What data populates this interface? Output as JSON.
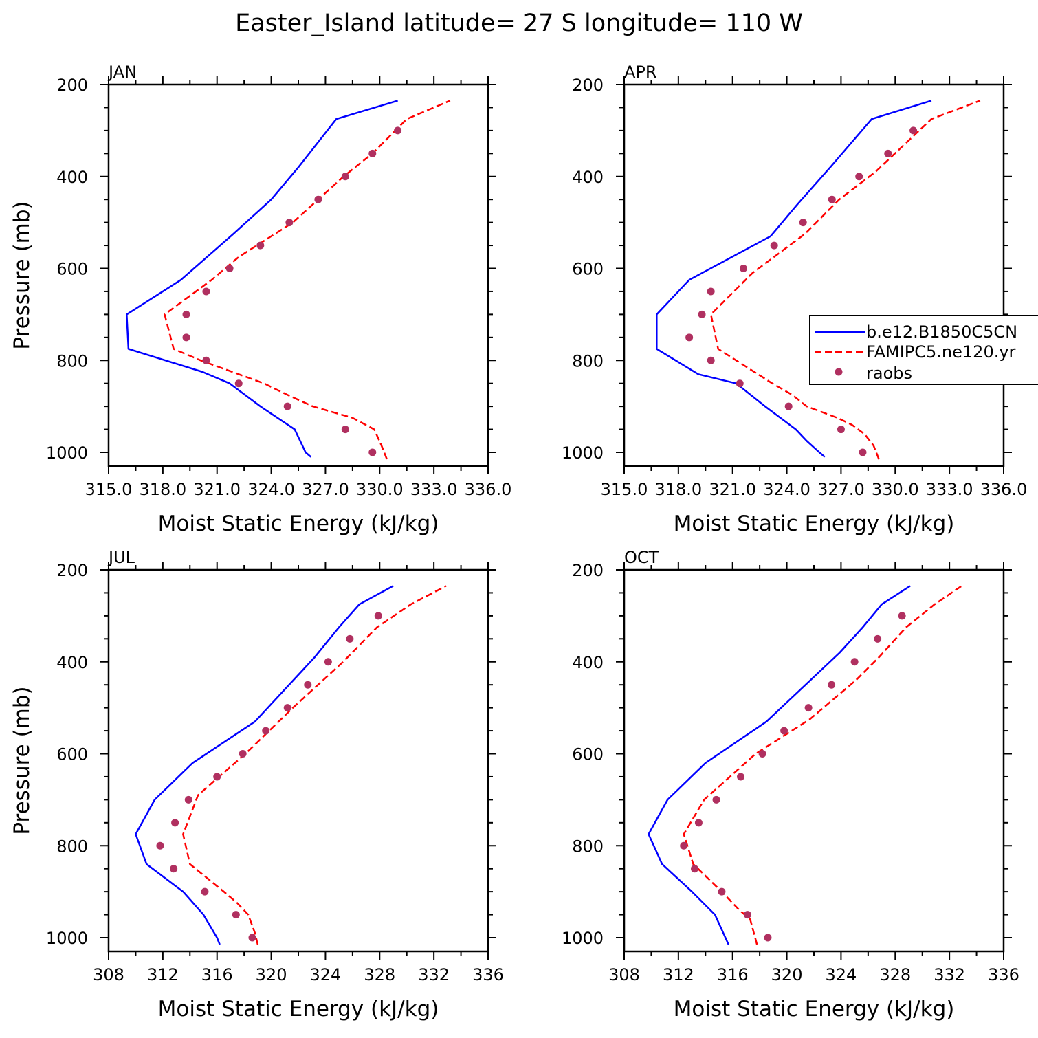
{
  "title": "Easter_Island  latitude= 27 S longitude= 110 W",
  "legend": {
    "entries": [
      {
        "label": "b.e12.B1850C5CN",
        "color": "#0000ff",
        "style": "solid"
      },
      {
        "label": "FAMIPC5.ne120.yr",
        "color": "#ff0000",
        "style": "dashed"
      },
      {
        "label": "raobs",
        "color": "#b03060",
        "style": "marker"
      }
    ]
  },
  "chart_data": [
    {
      "type": "line",
      "panel": "JAN",
      "title": "JAN",
      "xlabel": "Moist Static Energy (kJ/kg)",
      "ylabel": "Pressure (mb)",
      "xlim": [
        315.0,
        336.0
      ],
      "ylim": [
        1000,
        200
      ],
      "x_ticks": [
        "315.0",
        "318.0",
        "321.0",
        "324.0",
        "327.0",
        "330.0",
        "333.0",
        "336.0"
      ],
      "y_ticks": [
        "200",
        "400",
        "600",
        "800",
        "1000"
      ],
      "series": [
        {
          "name": "b.e12.B1850C5CN",
          "pressure": [
            1010,
            1000,
            950,
            900,
            850,
            825,
            775,
            700,
            625,
            525,
            450,
            380,
            275,
            235
          ],
          "mse": [
            326.2,
            325.9,
            325.3,
            323.4,
            321.7,
            320.2,
            316.1,
            316.0,
            319.0,
            321.9,
            324.0,
            325.5,
            327.6,
            331.0
          ]
        },
        {
          "name": "FAMIPC5.ne120.yr",
          "pressure": [
            1015,
            985,
            950,
            925,
            900,
            875,
            850,
            800,
            775,
            700,
            625,
            575,
            500,
            450,
            400,
            350,
            275,
            235
          ],
          "mse": [
            330.4,
            330.1,
            329.7,
            328.5,
            326.3,
            324.9,
            323.6,
            320.1,
            318.6,
            318.1,
            320.7,
            322.2,
            325.2,
            326.6,
            328.0,
            329.6,
            331.5,
            333.9
          ]
        },
        {
          "name": "raobs",
          "pressure": [
            1000,
            950,
            900,
            850,
            800,
            750,
            700,
            650,
            600,
            550,
            500,
            450,
            400,
            350,
            300
          ],
          "mse": [
            329.6,
            328.1,
            324.9,
            322.2,
            320.4,
            319.3,
            319.3,
            320.4,
            321.7,
            323.4,
            325.0,
            326.6,
            328.1,
            329.6,
            331.0
          ]
        }
      ]
    },
    {
      "type": "line",
      "panel": "APR",
      "title": "APR",
      "xlabel": "Moist Static Energy (kJ/kg)",
      "ylabel": "",
      "xlim": [
        315.0,
        336.0
      ],
      "ylim": [
        1000,
        200
      ],
      "x_ticks": [
        "315.0",
        "318.0",
        "321.0",
        "324.0",
        "327.0",
        "330.0",
        "333.0",
        "336.0"
      ],
      "y_ticks": [
        "200",
        "400",
        "600",
        "800",
        "1000"
      ],
      "series": [
        {
          "name": "b.e12.B1850C5CN",
          "pressure": [
            1010,
            1000,
            975,
            950,
            900,
            850,
            830,
            775,
            700,
            625,
            530,
            460,
            380,
            275,
            235
          ],
          "mse": [
            326.1,
            325.8,
            325.1,
            324.5,
            322.8,
            321.2,
            319.1,
            316.8,
            316.8,
            318.6,
            323.1,
            324.6,
            326.4,
            328.7,
            332.0
          ]
        },
        {
          "name": "FAMIPC5.ne120.yr",
          "pressure": [
            1015,
            985,
            960,
            940,
            925,
            900,
            875,
            850,
            775,
            700,
            610,
            525,
            450,
            390,
            275,
            235
          ],
          "mse": [
            329.1,
            328.8,
            328.3,
            327.6,
            326.8,
            325.1,
            324.3,
            323.2,
            320.2,
            319.8,
            322.1,
            325.0,
            326.9,
            328.9,
            332.0,
            334.7
          ]
        },
        {
          "name": "raobs",
          "pressure": [
            1000,
            950,
            900,
            850,
            800,
            750,
            700,
            650,
            600,
            550,
            500,
            450,
            400,
            350,
            300
          ],
          "mse": [
            328.2,
            327.0,
            324.1,
            321.4,
            319.8,
            318.6,
            319.3,
            319.8,
            321.6,
            323.3,
            324.9,
            326.5,
            328.0,
            329.6,
            331.0
          ]
        }
      ]
    },
    {
      "type": "line",
      "panel": "JUL",
      "title": "JUL",
      "xlabel": "Moist Static Energy (kJ/kg)",
      "ylabel": "Pressure (mb)",
      "xlim": [
        308,
        336
      ],
      "ylim": [
        1000,
        200
      ],
      "x_ticks": [
        "308",
        "312",
        "316",
        "320",
        "324",
        "328",
        "332",
        "336"
      ],
      "y_ticks": [
        "200",
        "400",
        "600",
        "800",
        "1000"
      ],
      "series": [
        {
          "name": "b.e12.B1850C5CN",
          "pressure": [
            1015,
            1000,
            950,
            900,
            840,
            775,
            700,
            620,
            530,
            460,
            390,
            325,
            275,
            235
          ],
          "mse": [
            316.2,
            316.0,
            315.0,
            313.5,
            310.8,
            310.0,
            311.4,
            314.2,
            318.8,
            321.0,
            323.2,
            325.0,
            326.5,
            329.0
          ]
        },
        {
          "name": "FAMIPC5.ne120.yr",
          "pressure": [
            1015,
            990,
            950,
            925,
            900,
            840,
            775,
            690,
            600,
            500,
            400,
            325,
            275,
            235
          ],
          "mse": [
            319.0,
            318.8,
            318.3,
            317.5,
            316.5,
            314.0,
            313.5,
            314.6,
            318.1,
            321.6,
            325.3,
            327.8,
            330.3,
            332.9
          ]
        },
        {
          "name": "raobs",
          "pressure": [
            1000,
            950,
            900,
            850,
            800,
            750,
            700,
            650,
            600,
            550,
            500,
            450,
            400,
            350,
            300
          ],
          "mse": [
            318.6,
            317.4,
            315.1,
            312.8,
            311.8,
            312.9,
            313.9,
            316.0,
            317.9,
            319.6,
            321.2,
            322.7,
            324.2,
            325.8,
            327.9
          ]
        }
      ]
    },
    {
      "type": "line",
      "panel": "OCT",
      "title": "OCT",
      "xlabel": "Moist Static Energy (kJ/kg)",
      "ylabel": "",
      "xlim": [
        308,
        336
      ],
      "ylim": [
        1000,
        200
      ],
      "x_ticks": [
        "308",
        "312",
        "316",
        "320",
        "324",
        "328",
        "332",
        "336"
      ],
      "y_ticks": [
        "200",
        "400",
        "600",
        "800",
        "1000"
      ],
      "series": [
        {
          "name": "b.e12.B1850C5CN",
          "pressure": [
            1015,
            950,
            900,
            840,
            775,
            700,
            620,
            530,
            380,
            325,
            275,
            235
          ],
          "mse": [
            315.7,
            314.7,
            313.0,
            310.8,
            309.8,
            311.2,
            314.0,
            318.5,
            323.9,
            325.6,
            327.0,
            329.1
          ]
        },
        {
          "name": "FAMIPC5.ne120.yr",
          "pressure": [
            1015,
            960,
            940,
            900,
            840,
            775,
            700,
            600,
            525,
            440,
            390,
            325,
            275,
            235
          ],
          "mse": [
            317.8,
            317.3,
            316.5,
            315.2,
            313.1,
            312.4,
            313.9,
            317.7,
            321.7,
            325.1,
            326.8,
            328.8,
            330.9,
            332.9
          ]
        },
        {
          "name": "raobs",
          "pressure": [
            1000,
            950,
            900,
            850,
            800,
            750,
            700,
            650,
            600,
            550,
            500,
            450,
            400,
            350,
            300
          ],
          "mse": [
            318.6,
            317.1,
            315.2,
            313.2,
            312.4,
            313.5,
            314.8,
            316.6,
            318.2,
            319.8,
            321.6,
            323.3,
            325.0,
            326.7,
            328.5
          ]
        }
      ]
    }
  ]
}
